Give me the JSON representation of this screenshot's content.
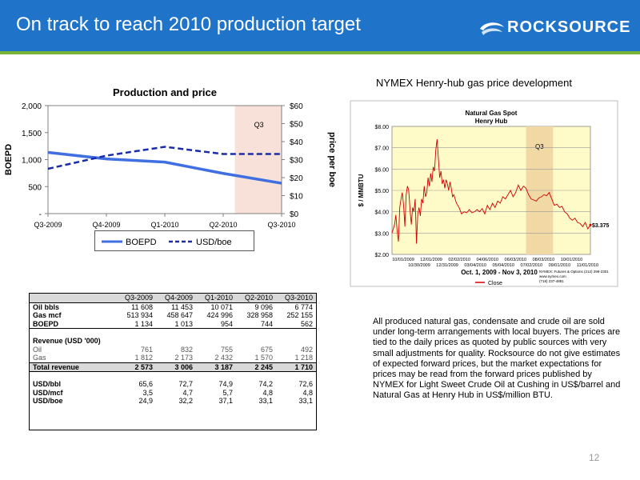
{
  "header": {
    "title": "On track to reach 2010 production target",
    "logo_text": "ROCKSOURCE",
    "colors": {
      "bar": "#1f74c9",
      "accent": "#79b337"
    }
  },
  "left_chart": {
    "title": "Production and price",
    "legend": [
      "BOEPD",
      "USD/boe"
    ]
  },
  "right_chart": {
    "heading": "NYMEX Henry-hub gas price  development",
    "title_line1": "Natural Gas Spot",
    "title_line2": "Henry Hub",
    "ylabel": "$ / MMBTU",
    "last_value_label": "$3.375",
    "date_range": "Oct. 1, 2009 - Nov 3, 2010",
    "legend_label": "Close",
    "q3_label": "Q3",
    "source_lines": [
      "NYMEX: Futures & Options (212) 299-2301",
      "www.nymex.com",
      "(718) 237-4881"
    ]
  },
  "chart_data": [
    {
      "type": "line",
      "title": "Production and price",
      "categories": [
        "Q3-2009",
        "Q4-2009",
        "Q1-2010",
        "Q2-2010",
        "Q3-2010"
      ],
      "series": [
        {
          "name": "BOEPD",
          "axis": "left",
          "values": [
            1134,
            1013,
            954,
            744,
            562
          ],
          "color": "#3f6fe0",
          "style": "solid"
        },
        {
          "name": "USD/boe",
          "axis": "right",
          "values": [
            24.9,
            32.2,
            37.1,
            33.1,
            33.1
          ],
          "color": "#1a2ca8",
          "style": "dashed"
        }
      ],
      "ylabel": "BOEPD",
      "y2label": "price per boe",
      "ylim": [
        0,
        2000
      ],
      "y2lim": [
        0,
        60
      ],
      "yticks": [
        "-",
        "500",
        "1,000",
        "1,500",
        "2,000"
      ],
      "y2ticks": [
        "$0",
        "$10",
        "$20",
        "$30",
        "$40",
        "$50",
        "$60"
      ],
      "highlight": {
        "label": "Q3",
        "from": "Q2-2010",
        "to": "Q3-2010",
        "color": "#f7e1d8"
      },
      "legend_position": "bottom",
      "grid": false
    },
    {
      "type": "line",
      "title": "Natural Gas Spot Henry Hub",
      "ylabel": "$ / MMBTU",
      "xlabel": "Oct. 1, 2009 - Nov 3, 2010",
      "ylim": [
        2.0,
        8.0
      ],
      "yticks": [
        "$2.00",
        "$3.00",
        "$4.00",
        "$5.00",
        "$6.00",
        "$7.00",
        "$8.00"
      ],
      "xticks_top": [
        "10/01/2009",
        "12/01/2009",
        "02/02/2010",
        "04/06/2010",
        "06/03/2010",
        "08/03/2010",
        "10/01/2010"
      ],
      "xticks_bottom": [
        "10/30/2009",
        "12/31/2009",
        "03/04/2010",
        "05/04/2010",
        "07/02/2010",
        "09/01/2010",
        "11/01/2010"
      ],
      "series": [
        {
          "name": "Close",
          "color": "#d00000",
          "points": [
            [
              0,
              3.0
            ],
            [
              2,
              3.4
            ],
            [
              3,
              3.85
            ],
            [
              4,
              3.1
            ],
            [
              5,
              2.6
            ],
            [
              6,
              4.2
            ],
            [
              7,
              4.6
            ],
            [
              8,
              4.9
            ],
            [
              9,
              4.3
            ],
            [
              10,
              3.3
            ],
            [
              11,
              4.8
            ],
            [
              12,
              5.2
            ],
            [
              13,
              5.0
            ],
            [
              14,
              4.1
            ],
            [
              15,
              3.4
            ],
            [
              16,
              4.2
            ],
            [
              17,
              4.0
            ],
            [
              18,
              4.6
            ],
            [
              19,
              2.5
            ],
            [
              20,
              3.9
            ],
            [
              21,
              4.2
            ],
            [
              22,
              3.8
            ],
            [
              23,
              4.6
            ],
            [
              24,
              4.4
            ],
            [
              25,
              5.2
            ],
            [
              26,
              4.7
            ],
            [
              27,
              4.9
            ],
            [
              28,
              5.6
            ],
            [
              29,
              5.2
            ],
            [
              30,
              5.8
            ],
            [
              31,
              5.4
            ],
            [
              32,
              6.1
            ],
            [
              33,
              5.9
            ],
            [
              34,
              6.9
            ],
            [
              35,
              7.4
            ],
            [
              36,
              6.5
            ],
            [
              37,
              5.6
            ],
            [
              38,
              5.9
            ],
            [
              39,
              5.3
            ],
            [
              40,
              5.5
            ],
            [
              41,
              5.1
            ],
            [
              42,
              5.5
            ],
            [
              43,
              5.3
            ],
            [
              44,
              5.0
            ],
            [
              45,
              5.4
            ],
            [
              46,
              5.1
            ],
            [
              47,
              4.7
            ],
            [
              48,
              4.8
            ],
            [
              49,
              4.6
            ],
            [
              50,
              4.4
            ],
            [
              52,
              4.2
            ],
            [
              54,
              3.9
            ],
            [
              56,
              4.0
            ],
            [
              58,
              3.95
            ],
            [
              60,
              4.1
            ],
            [
              62,
              3.95
            ],
            [
              64,
              4.0
            ],
            [
              66,
              4.1
            ],
            [
              68,
              4.0
            ],
            [
              70,
              4.15
            ],
            [
              72,
              3.9
            ],
            [
              74,
              4.3
            ],
            [
              76,
              4.1
            ],
            [
              78,
              4.4
            ],
            [
              80,
              4.2
            ],
            [
              82,
              4.5
            ],
            [
              84,
              4.4
            ],
            [
              86,
              4.7
            ],
            [
              88,
              4.6
            ],
            [
              90,
              4.8
            ],
            [
              92,
              5.0
            ],
            [
              94,
              4.7
            ],
            [
              96,
              4.9
            ],
            [
              98,
              5.25
            ],
            [
              100,
              5.0
            ],
            [
              102,
              5.2
            ],
            [
              104,
              5.1
            ],
            [
              106,
              4.8
            ],
            [
              108,
              4.6
            ],
            [
              110,
              4.55
            ],
            [
              112,
              4.5
            ],
            [
              114,
              4.65
            ],
            [
              116,
              4.7
            ],
            [
              118,
              4.8
            ],
            [
              120,
              4.75
            ],
            [
              122,
              4.9
            ],
            [
              124,
              4.6
            ],
            [
              126,
              4.3
            ],
            [
              128,
              4.35
            ],
            [
              130,
              4.2
            ],
            [
              132,
              4.25
            ],
            [
              134,
              4.0
            ],
            [
              136,
              3.9
            ],
            [
              138,
              3.7
            ],
            [
              140,
              3.6
            ],
            [
              142,
              3.7
            ],
            [
              144,
              3.5
            ],
            [
              146,
              3.45
            ],
            [
              148,
              3.3
            ],
            [
              150,
              3.5
            ],
            [
              152,
              3.2
            ],
            [
              154,
              3.38
            ]
          ]
        }
      ],
      "highlight": {
        "label": "Q3",
        "color": "#f1d9a6"
      },
      "last_value": "$3.375"
    }
  ],
  "table": {
    "header": [
      "",
      "Q3-2009",
      "Q4-2009",
      "Q1-2010",
      "Q2-2010",
      "Q3-2010"
    ],
    "rows": [
      {
        "cells": [
          "Oil bbls",
          "11 608",
          "11 453",
          "10 071",
          "9 096",
          "6 774"
        ],
        "style": "bold-label"
      },
      {
        "cells": [
          "Gas mcf",
          "513 934",
          "458 647",
          "424 996",
          "328 958",
          "252 155"
        ],
        "style": "bold-label"
      },
      {
        "cells": [
          "BOEPD",
          "1 134",
          "1 013",
          "954",
          "744",
          "562"
        ],
        "style": "bold-label"
      },
      {
        "cells": [
          "",
          "",
          "",
          "",
          "",
          ""
        ],
        "style": "spacer"
      },
      {
        "cells": [
          "Revenue (USD '000)",
          "",
          "",
          "",
          "",
          ""
        ],
        "style": "bold-label"
      },
      {
        "cells": [
          "Oil",
          "761",
          "832",
          "755",
          "675",
          "492"
        ],
        "style": "grey"
      },
      {
        "cells": [
          "Gas",
          "1 812",
          "2 173",
          "2 432",
          "1 570",
          "1 218"
        ],
        "style": "grey"
      },
      {
        "cells": [
          "Total revenue",
          "2 573",
          "3 006",
          "3 187",
          "2 245",
          "1 710"
        ],
        "style": "total"
      },
      {
        "cells": [
          "",
          "",
          "",
          "",
          "",
          ""
        ],
        "style": "spacer"
      },
      {
        "cells": [
          "USD/bbl",
          "65,6",
          "72,7",
          "74,9",
          "74,2",
          "72,6"
        ],
        "style": "bold-label"
      },
      {
        "cells": [
          "USD/mcf",
          "3,5",
          "4,7",
          "5,7",
          "4,8",
          "4,8"
        ],
        "style": "bold-label"
      },
      {
        "cells": [
          "USD/boe",
          "24,9",
          "32,2",
          "37,1",
          "33,1",
          "33,1"
        ],
        "style": "bold-label"
      }
    ]
  },
  "paragraph": "All produced natural gas, condensate and crude oil are sold under long-term arrangements with local buyers. The prices are tied to the daily prices as quoted by public sources with very small adjustments for quality. Rocksource do not give estimates of expected forward prices, but the market expectations for prices may be read from the forward prices published by NYMEX for Light Sweet Crude Oil at Cushing in US$/barrel and Natural Gas at Henry Hub in US$/million BTU.",
  "page_number": "12"
}
